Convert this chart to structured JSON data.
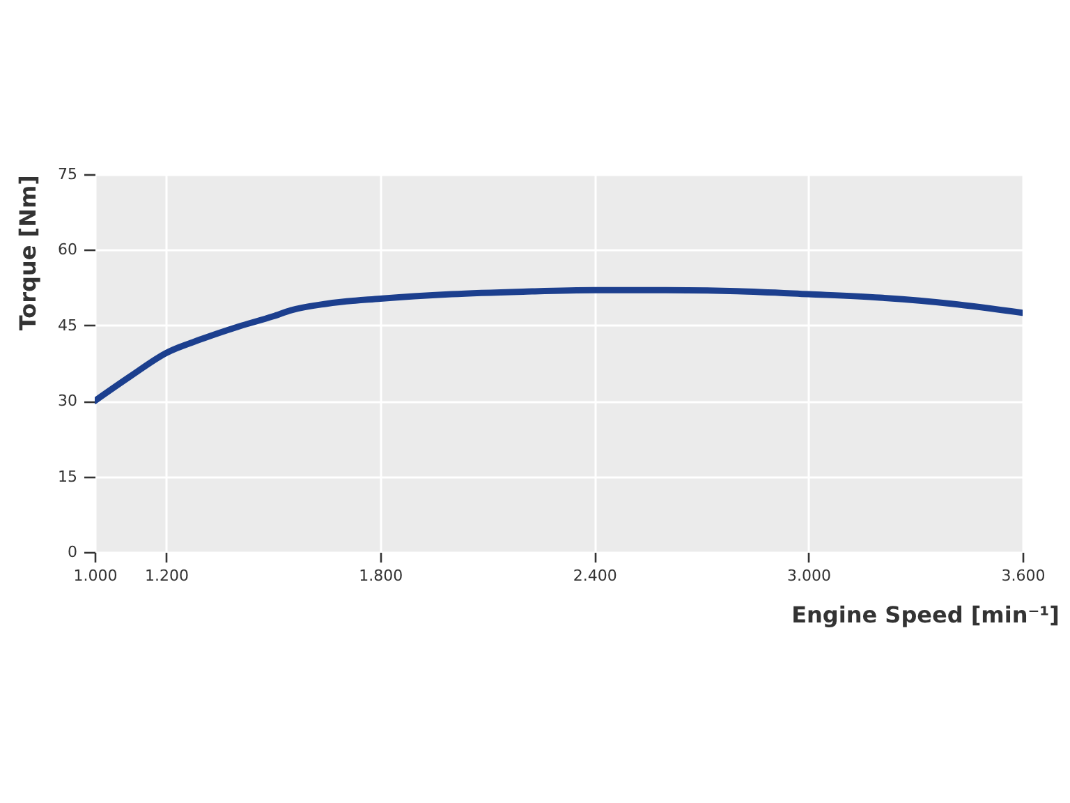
{
  "chart_data": {
    "type": "line",
    "xlabel": "Engine Speed [min⁻¹]",
    "ylabel": "Torque [Nm]",
    "x": [
      1000,
      1100,
      1200,
      1300,
      1400,
      1500,
      1550,
      1650,
      1800,
      2000,
      2200,
      2400,
      2600,
      2800,
      3000,
      3200,
      3400,
      3600
    ],
    "series": [
      {
        "color": "#1c3f8e",
        "values": [
          30,
          34.9,
          39.5,
          42.3,
          44.7,
          46.8,
          48,
          49.3,
          50.3,
          51.2,
          51.7,
          52,
          52,
          51.8,
          51.2,
          50.5,
          49.3,
          47.5
        ]
      }
    ],
    "xlim": [
      1000,
      3600
    ],
    "xticks": [
      {
        "value": 1000,
        "label": "1.000"
      },
      {
        "value": 1200,
        "label": "1.200"
      },
      {
        "value": 1800,
        "label": "1.800"
      },
      {
        "value": 2400,
        "label": "2.400"
      },
      {
        "value": 3000,
        "label": "3.000"
      },
      {
        "value": 3600,
        "label": "3.600"
      }
    ],
    "ylim": [
      0,
      75
    ],
    "yticks": [
      0,
      15,
      30,
      45,
      60,
      75
    ],
    "grid": true
  }
}
